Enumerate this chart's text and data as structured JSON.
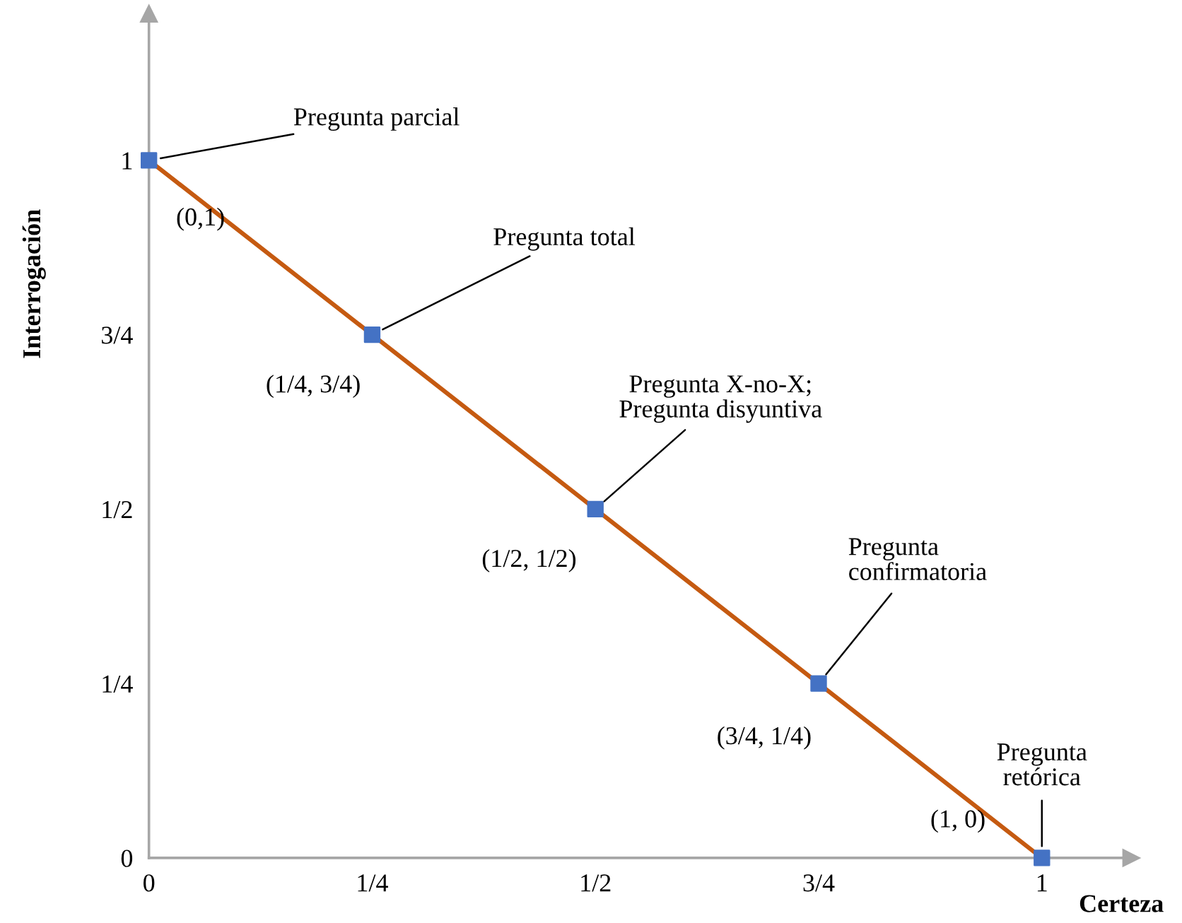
{
  "chart_data": {
    "type": "line",
    "xlabel": "Certeza",
    "ylabel": "Interrogación",
    "x": [
      0,
      0.25,
      0.5,
      0.75,
      1
    ],
    "series": [
      {
        "color": "#c55a11",
        "colors": [
          "#4472c4",
          "#4472c4",
          "#4472c4",
          "#4472c4",
          "#4472c4"
        ],
        "values": [
          1,
          0.75,
          0.5,
          0.25,
          0
        ]
      }
    ],
    "marker": "square",
    "line_style": "solid",
    "grid": false,
    "xlim": [
      0,
      1.1
    ],
    "ylim": [
      0,
      1.21
    ],
    "xticks": [
      0,
      {
        "value": 0.25,
        "label": "1/4"
      },
      {
        "value": 0.5,
        "label": "1/2"
      },
      {
        "value": 0.75,
        "label": "3/4"
      },
      1
    ],
    "yticks": [
      0,
      {
        "value": 0.25,
        "label": "1/4"
      },
      {
        "value": 0.5,
        "label": "1/2"
      },
      {
        "value": 0.75,
        "label": "3/4"
      },
      1
    ],
    "annotations": [
      {
        "text": "Pregunta parcial",
        "x": 0,
        "y": 1
      },
      {
        "text": "(0,1)",
        "x": 0,
        "y": 1
      },
      {
        "text": "Pregunta total",
        "x": 0.25,
        "y": 0.75
      },
      {
        "text": "(1/4, 3/4)",
        "x": 0.25,
        "y": 0.75
      },
      {
        "text": "Pregunta X-no-X;\nPregunta disyuntiva",
        "x": 0.5,
        "y": 0.5
      },
      {
        "text": "(1/2, 1/2)",
        "x": 0.5,
        "y": 0.5
      },
      {
        "text": "Pregunta\nconfirmatoria",
        "x": 0.75,
        "y": 0.25
      },
      {
        "text": "(3/4, 1/4)",
        "x": 0.75,
        "y": 0.25
      },
      {
        "text": "Pregunta\nretórica",
        "x": 1,
        "y": 0
      },
      {
        "text": "(1, 0)",
        "x": 1,
        "y": 0
      }
    ]
  }
}
